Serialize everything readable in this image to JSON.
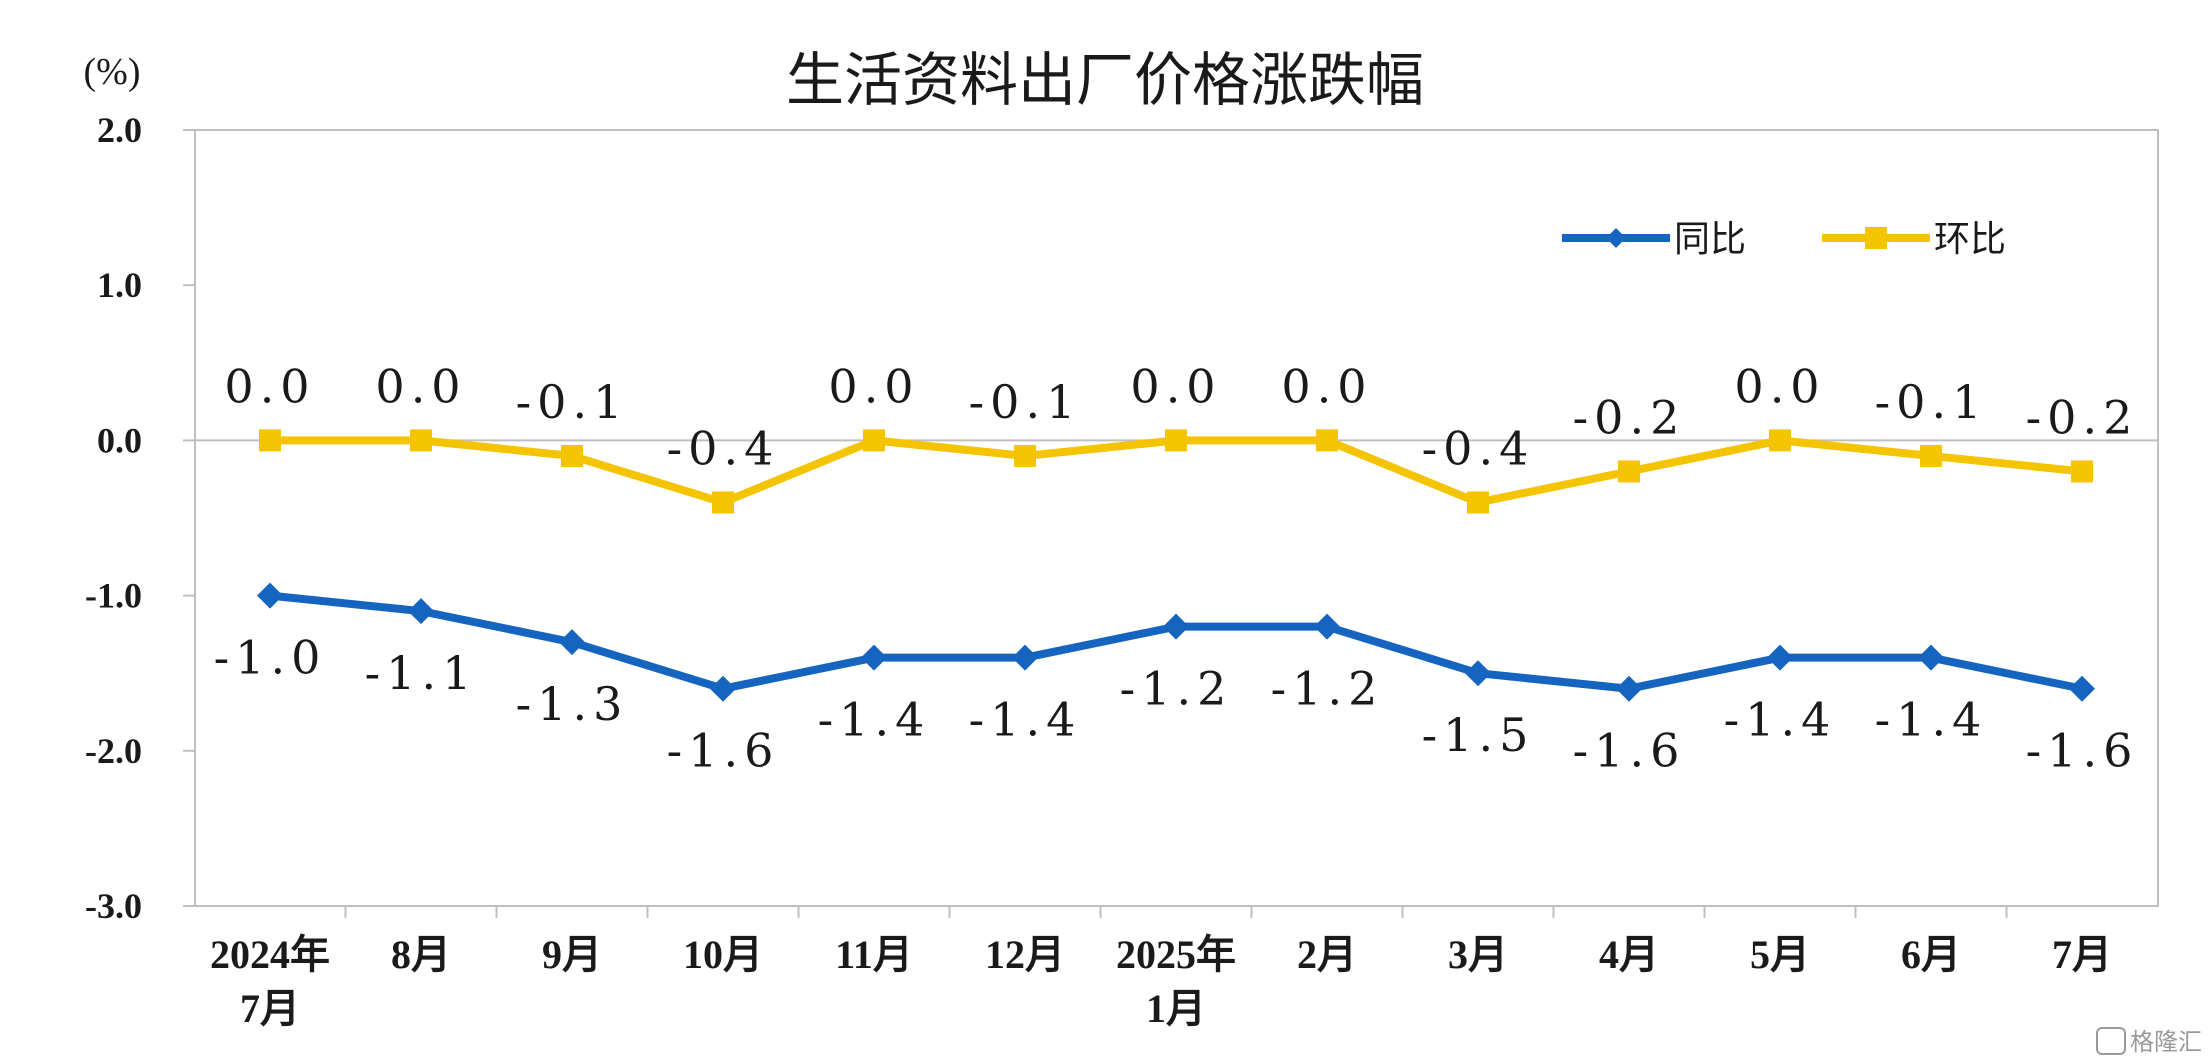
{
  "chart_data": {
    "type": "line",
    "title": "生活资料出厂价格涨跌幅",
    "ylabel": "(%)",
    "ylim": [
      -3.0,
      2.0
    ],
    "yticks": [
      "2.0",
      "1.0",
      "0.0",
      "-1.0",
      "-2.0",
      "-3.0"
    ],
    "ytick_values": [
      2.0,
      1.0,
      0.0,
      -1.0,
      -2.0,
      -3.0
    ],
    "categories": [
      [
        "2024年",
        "7月"
      ],
      [
        "8月"
      ],
      [
        "9月"
      ],
      [
        "10月"
      ],
      [
        "11月"
      ],
      [
        "12月"
      ],
      [
        "2025年",
        "1月"
      ],
      [
        "2月"
      ],
      [
        "3月"
      ],
      [
        "4月"
      ],
      [
        "5月"
      ],
      [
        "6月"
      ],
      [
        "7月"
      ]
    ],
    "grid": false,
    "legend_position": "top-right",
    "series": [
      {
        "name": "同比",
        "color": "#1565C0",
        "marker": "diamond",
        "values": [
          -1.0,
          -1.1,
          -1.3,
          -1.6,
          -1.4,
          -1.4,
          -1.2,
          -1.2,
          -1.5,
          -1.6,
          -1.4,
          -1.4,
          -1.6
        ],
        "labels": [
          "-1.0",
          "-1.1",
          "-1.3",
          "-1.6",
          "-1.4",
          "-1.4",
          "-1.2",
          "-1.2",
          "-1.5",
          "-1.6",
          "-1.4",
          "-1.4",
          "-1.6"
        ],
        "label_position": "below"
      },
      {
        "name": "环比",
        "color": "#F5C400",
        "marker": "square",
        "values": [
          0.0,
          0.0,
          -0.1,
          -0.4,
          0.0,
          -0.1,
          0.0,
          0.0,
          -0.4,
          -0.2,
          0.0,
          -0.1,
          -0.2
        ],
        "labels": [
          "0.0",
          "0.0",
          "-0.1",
          "-0.4",
          "0.0",
          "-0.1",
          "0.0",
          "0.0",
          "-0.4",
          "-0.2",
          "0.0",
          "-0.1",
          "-0.2"
        ],
        "label_position": "above"
      }
    ]
  },
  "watermark": "格隆汇"
}
